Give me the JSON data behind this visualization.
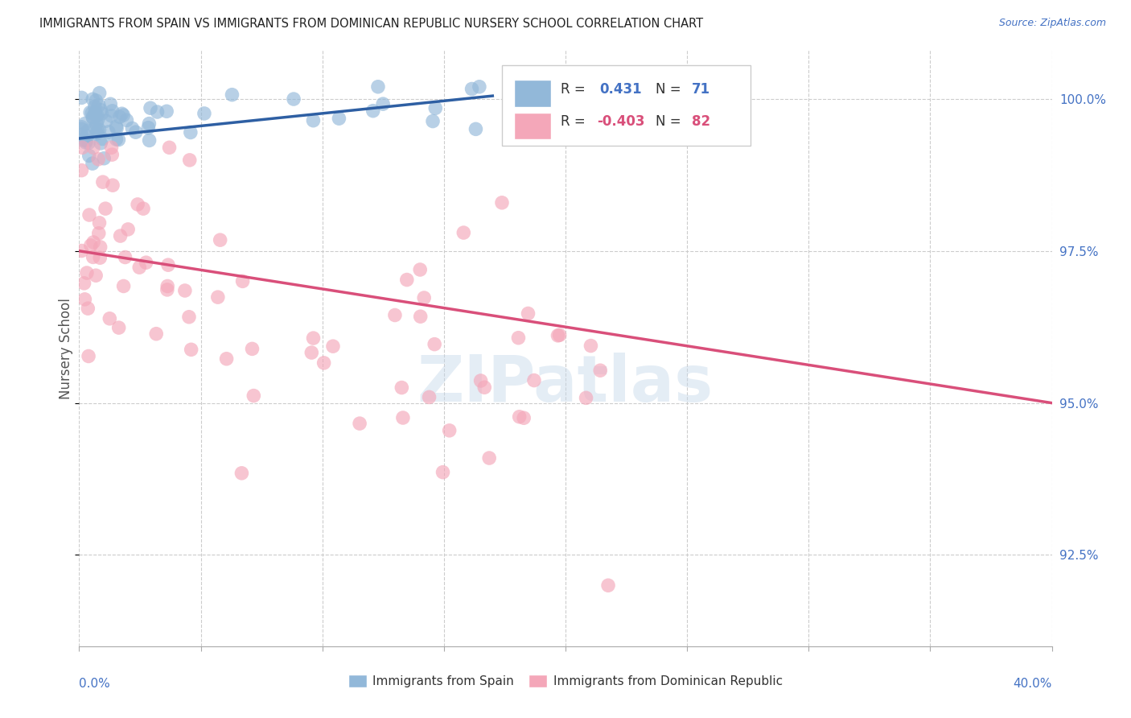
{
  "title": "IMMIGRANTS FROM SPAIN VS IMMIGRANTS FROM DOMINICAN REPUBLIC NURSERY SCHOOL CORRELATION CHART",
  "source": "Source: ZipAtlas.com",
  "ylabel": "Nursery School",
  "blue_color": "#92b8d9",
  "pink_color": "#f4a7b9",
  "blue_line_color": "#2e5fa3",
  "pink_line_color": "#d94f7a",
  "watermark": "ZIPatlas",
  "xlim": [
    0.0,
    0.4
  ],
  "ylim": [
    0.91,
    1.008
  ],
  "yticks": [
    0.925,
    0.95,
    0.975,
    1.0
  ],
  "ytick_labels": [
    "92.5%",
    "95.0%",
    "97.5%",
    "100.0%"
  ],
  "xtick_label_left": "0.0%",
  "xtick_label_right": "40.0%",
  "legend_items": [
    {
      "color": "#92b8d9",
      "r_label": "R =",
      "r_val": "0.431",
      "n_label": "N =",
      "n_val": "71"
    },
    {
      "color": "#f4a7b9",
      "r_label": "R =",
      "r_val": "-0.403",
      "n_label": "N =",
      "n_val": "82"
    }
  ],
  "bottom_legend": [
    "Immigrants from Spain",
    "Immigrants from Dominican Republic"
  ]
}
